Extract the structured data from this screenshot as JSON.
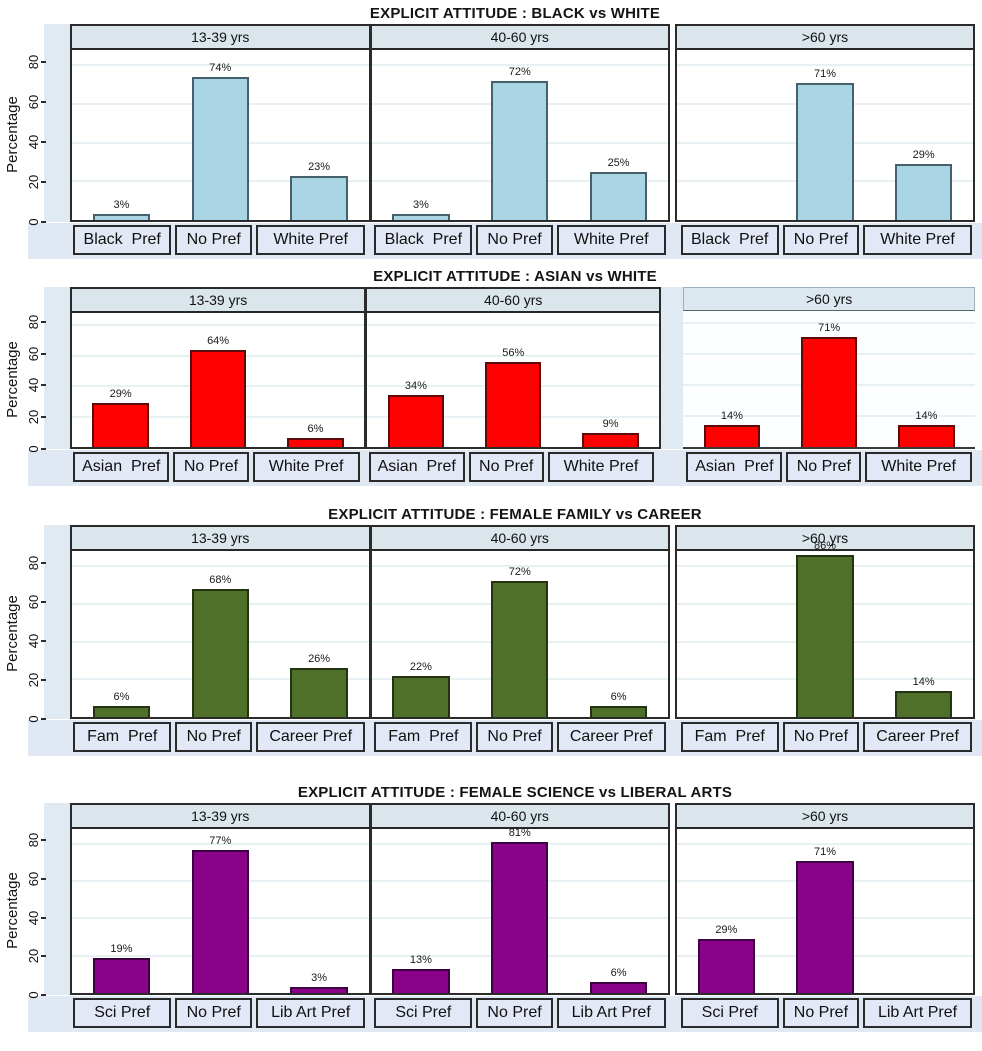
{
  "y_axis": {
    "label": "Percentage",
    "ticks": [
      0,
      20,
      40,
      60,
      80
    ],
    "max": 88
  },
  "age_groups": [
    "13-39 yrs",
    "40-60 yrs",
    ">60 yrs"
  ],
  "chart_data": [
    {
      "type": "bar",
      "title": "EXPLICIT ATTITUDE : BLACK vs WHITE",
      "ylabel": "Percentage",
      "ylim": [
        0,
        88
      ],
      "yticks": [
        0,
        20,
        40,
        60,
        80
      ],
      "bar_color": "#aad5e5",
      "bar_border": "#44616c",
      "categories": [
        "Black  Pref",
        "No Pref",
        "White Pref"
      ],
      "facets": [
        {
          "age_group": "13-39 yrs",
          "values": [
            3,
            74,
            23
          ],
          "labels": [
            "3%",
            "74%",
            "23%"
          ]
        },
        {
          "age_group": "40-60 yrs",
          "values": [
            3,
            72,
            25
          ],
          "labels": [
            "3%",
            "72%",
            "25%"
          ]
        },
        {
          "age_group": ">60 yrs",
          "values": [
            null,
            71,
            29
          ],
          "labels": [
            null,
            "71%",
            "29%"
          ]
        }
      ]
    },
    {
      "type": "bar",
      "title": "EXPLICIT ATTITUDE : ASIAN vs WHITE",
      "ylabel": "Percentage",
      "ylim": [
        0,
        88
      ],
      "yticks": [
        0,
        20,
        40,
        60,
        80
      ],
      "bar_color": "#fe0100",
      "bar_border": "#5c0a0a",
      "categories": [
        "Asian  Pref",
        "No Pref",
        "White Pref"
      ],
      "facets": [
        {
          "age_group": "13-39 yrs",
          "values": [
            29,
            64,
            6
          ],
          "labels": [
            "29%",
            "64%",
            "6%"
          ]
        },
        {
          "age_group": "40-60 yrs",
          "values": [
            34,
            56,
            9
          ],
          "labels": [
            "34%",
            "56%",
            "9%"
          ]
        },
        {
          "age_group": ">60 yrs",
          "values": [
            14,
            71,
            14
          ],
          "labels": [
            "14%",
            "71%",
            "14%"
          ]
        }
      ]
    },
    {
      "type": "bar",
      "title": "EXPLICIT ATTITUDE : FEMALE FAMILY vs CAREER",
      "ylabel": "Percentage",
      "ylim": [
        0,
        88
      ],
      "yticks": [
        0,
        20,
        40,
        60,
        80
      ],
      "bar_color": "#4f7029",
      "bar_border": "#243312",
      "categories": [
        "Fam  Pref",
        "No Pref",
        "Career Pref"
      ],
      "facets": [
        {
          "age_group": "13-39 yrs",
          "values": [
            6,
            68,
            26
          ],
          "labels": [
            "6%",
            "68%",
            "26%"
          ]
        },
        {
          "age_group": "40-60 yrs",
          "values": [
            22,
            72,
            6
          ],
          "labels": [
            "22%",
            "72%",
            "6%"
          ]
        },
        {
          "age_group": ">60 yrs",
          "values": [
            null,
            86,
            14
          ],
          "labels": [
            null,
            "86%",
            "14%"
          ]
        }
      ]
    },
    {
      "type": "bar",
      "title": "EXPLICIT ATTITUDE : FEMALE SCIENCE vs LIBERAL ARTS",
      "ylabel": "Percentage",
      "ylim": [
        0,
        88
      ],
      "yticks": [
        0,
        20,
        40,
        60,
        80
      ],
      "bar_color": "#8a018a",
      "bar_border": "#3c0140",
      "categories": [
        "Sci Pref",
        "No Pref",
        "Lib Art Pref"
      ],
      "facets": [
        {
          "age_group": "13-39 yrs",
          "values": [
            19,
            77,
            3
          ],
          "labels": [
            "19%",
            "77%",
            "3%"
          ]
        },
        {
          "age_group": "40-60 yrs",
          "values": [
            13,
            81,
            6
          ],
          "labels": [
            "13%",
            "81%",
            "6%"
          ]
        },
        {
          "age_group": ">60 yrs",
          "values": [
            29,
            71,
            null
          ],
          "labels": [
            "29%",
            "71%",
            null
          ]
        }
      ]
    }
  ]
}
